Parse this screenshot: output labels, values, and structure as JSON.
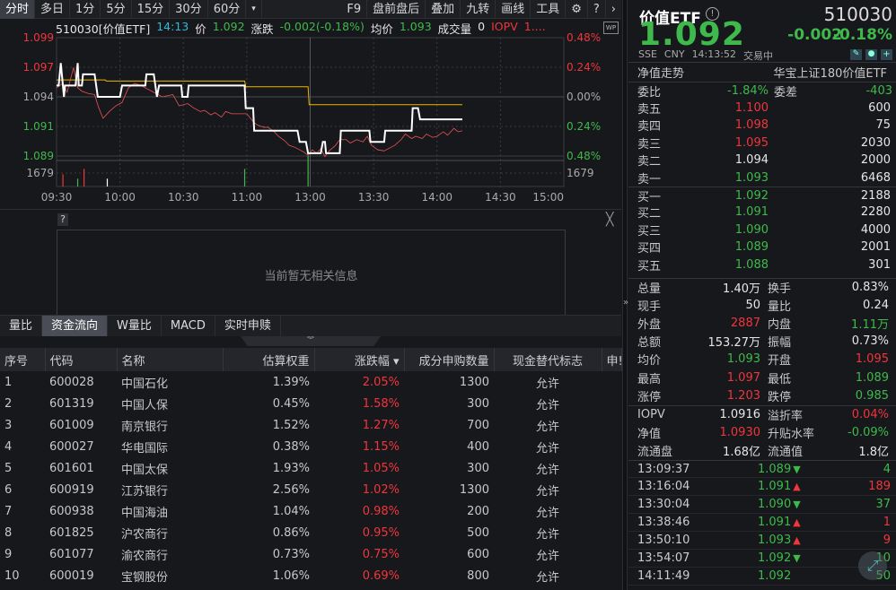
{
  "toolbar": {
    "periods": [
      "分时",
      "多日",
      "1分",
      "5分",
      "15分",
      "30分",
      "60分"
    ],
    "more": "▾",
    "tools": [
      "F9",
      "盘前盘后",
      "叠加",
      "九转",
      "画线",
      "工具"
    ],
    "settings_icon": "gear-icon",
    "help_icon": "question-icon",
    "next_icon": "chevron-right-icon"
  },
  "chart_header": {
    "code": "510030[价值ETF]",
    "time": "14:13",
    "price_label": "价",
    "price": "1.092",
    "change_label": "涨跌",
    "change": "-0.002(-0.18%)",
    "avg_label": "均价",
    "avg": "1.093",
    "vol_label": "成交量",
    "vol": "0",
    "iopv_label": "IOPV",
    "iopv": "1....",
    "wp": "WP"
  },
  "chart_data": {
    "type": "line",
    "prev_close": 1.094,
    "y_ticks_left": [
      "1.099",
      "1.097",
      "1.094",
      "1.091",
      "1.089"
    ],
    "y_ticks_right": [
      "0.48%",
      "0.24%",
      "0.00%",
      "0.24%",
      "0.48%"
    ],
    "volume_tick": "1679",
    "x_ticks": [
      "09:30",
      "10:00",
      "10:30",
      "11:00",
      "13:00",
      "13:30",
      "14:00",
      "14:30",
      "15:00"
    ],
    "grid": true,
    "colors": {
      "price": "#ffffff",
      "avg": "#f0b400",
      "iopv": "#e85454",
      "up": "#f0363c",
      "down": "#3fb94b"
    },
    "price_series": [
      [
        0,
        1.095
      ],
      [
        1,
        1.095
      ],
      [
        2,
        1.097
      ],
      [
        3.5,
        1.094
      ],
      [
        4,
        1.095
      ],
      [
        9,
        1.095
      ],
      [
        10,
        1.097
      ],
      [
        10.5,
        1.095
      ],
      [
        12,
        1.095
      ],
      [
        12.5,
        1.096
      ],
      [
        18,
        1.096
      ],
      [
        19.5,
        1.094
      ],
      [
        30,
        1.094
      ],
      [
        31,
        1.095
      ],
      [
        42,
        1.095
      ],
      [
        42.5,
        1.096
      ],
      [
        46,
        1.096
      ],
      [
        47.5,
        1.094
      ],
      [
        48.5,
        1.095
      ],
      [
        59,
        1.095
      ],
      [
        59.5,
        1.094
      ],
      [
        62,
        1.094
      ],
      [
        62.5,
        1.095
      ],
      [
        89,
        1.095
      ],
      [
        89.5,
        1.093
      ],
      [
        93,
        1.093
      ],
      [
        93.5,
        1.091
      ],
      [
        114,
        1.091
      ],
      [
        115,
        1.09
      ],
      [
        118,
        1.09
      ],
      [
        119,
        1.089
      ],
      [
        125,
        1.089
      ],
      [
        126,
        1.09
      ],
      [
        127,
        1.09
      ],
      [
        127.5,
        1.089
      ],
      [
        134,
        1.089
      ],
      [
        134.5,
        1.091
      ],
      [
        148,
        1.091
      ],
      [
        148.5,
        1.09
      ],
      [
        155,
        1.09
      ],
      [
        155.5,
        1.091
      ],
      [
        168,
        1.091
      ],
      [
        168.5,
        1.093
      ],
      [
        171,
        1.093
      ],
      [
        172,
        1.092
      ],
      [
        192,
        1.092
      ]
    ],
    "avg_series": [
      [
        0,
        1.0955
      ],
      [
        23,
        1.0955
      ],
      [
        23.5,
        1.0954
      ],
      [
        89,
        1.0954
      ],
      [
        89.5,
        1.0949
      ],
      [
        119,
        1.0949
      ],
      [
        119.5,
        1.0933
      ],
      [
        192,
        1.0933
      ]
    ],
    "iopv_series": [
      [
        0,
        1.0948
      ],
      [
        3,
        1.0952
      ],
      [
        5,
        1.0944
      ],
      [
        8,
        1.0966
      ],
      [
        10,
        1.0948
      ],
      [
        12,
        1.0945
      ],
      [
        15,
        1.0943
      ],
      [
        18,
        1.0942
      ],
      [
        20,
        1.093
      ],
      [
        22,
        1.0921
      ],
      [
        25,
        1.0927
      ],
      [
        28,
        1.0932
      ],
      [
        31,
        1.0935
      ],
      [
        34,
        1.0948
      ],
      [
        37,
        1.0952
      ],
      [
        40,
        1.095
      ],
      [
        43,
        1.0947
      ],
      [
        46,
        1.0944
      ],
      [
        50,
        1.094
      ],
      [
        55,
        1.0942
      ],
      [
        58,
        1.0932
      ],
      [
        62,
        1.0934
      ],
      [
        65,
        1.093
      ],
      [
        68,
        1.0927
      ],
      [
        70,
        1.0928
      ],
      [
        73,
        1.0924
      ],
      [
        75,
        1.0926
      ],
      [
        78,
        1.0922
      ],
      [
        80,
        1.0927
      ],
      [
        83,
        1.0925
      ],
      [
        86,
        1.0925
      ],
      [
        90,
        1.0925
      ],
      [
        93,
        1.0918
      ],
      [
        95,
        1.0915
      ],
      [
        98,
        1.0913
      ],
      [
        100,
        1.0913
      ],
      [
        103,
        1.0909
      ],
      [
        105,
        1.0905
      ],
      [
        108,
        1.0901
      ],
      [
        110,
        1.0897
      ],
      [
        113,
        1.0895
      ],
      [
        115,
        1.0893
      ],
      [
        117,
        1.0891
      ],
      [
        119,
        1.0888
      ],
      [
        121,
        1.0893
      ],
      [
        123,
        1.089
      ],
      [
        125,
        1.0894
      ],
      [
        127,
        1.0887
      ],
      [
        129,
        1.0892
      ],
      [
        132,
        1.0897
      ],
      [
        134,
        1.0902
      ],
      [
        137,
        1.0902
      ],
      [
        139,
        1.0899
      ],
      [
        142,
        1.0902
      ],
      [
        145,
        1.09
      ],
      [
        147,
        1.0905
      ],
      [
        149,
        1.0897
      ],
      [
        152,
        1.0893
      ],
      [
        155,
        1.0892
      ],
      [
        158,
        1.0895
      ],
      [
        160,
        1.0897
      ],
      [
        163,
        1.0902
      ],
      [
        165,
        1.0907
      ],
      [
        168,
        1.0903
      ],
      [
        170,
        1.0905
      ],
      [
        173,
        1.0903
      ],
      [
        175,
        1.0907
      ],
      [
        178,
        1.0904
      ],
      [
        180,
        1.0905
      ],
      [
        183,
        1.0909
      ],
      [
        185,
        1.0906
      ],
      [
        188,
        1.0912
      ],
      [
        190,
        1.0909
      ],
      [
        192,
        1.091
      ]
    ],
    "volume": [
      [
        3,
        1526,
        "up"
      ],
      [
        10,
        977,
        "down"
      ],
      [
        13,
        2198,
        "up"
      ],
      [
        24,
        977,
        "flat"
      ],
      [
        89,
        2198,
        "down"
      ],
      [
        119,
        3816,
        "down"
      ]
    ]
  },
  "info": {
    "text": "当前暂无相关信息",
    "help": "?",
    "close": "╳"
  },
  "tabs": [
    "量比",
    "资金流向",
    "W量比",
    "MACD",
    "实时申赎"
  ],
  "collapse": "︾",
  "table": {
    "headers": [
      "序号",
      "代码",
      "名称",
      "估算权重",
      "涨跌幅 ▾",
      "成分申购数量",
      "现金替代标志",
      "申!"
    ],
    "rows": [
      [
        "1",
        "600028",
        "中国石化",
        "1.39%",
        "2.05%",
        "1300",
        "允许"
      ],
      [
        "2",
        "601319",
        "中国人保",
        "0.45%",
        "1.58%",
        "300",
        "允许"
      ],
      [
        "3",
        "601009",
        "南京银行",
        "1.52%",
        "1.27%",
        "700",
        "允许"
      ],
      [
        "4",
        "600027",
        "华电国际",
        "0.38%",
        "1.15%",
        "400",
        "允许"
      ],
      [
        "5",
        "601601",
        "中国太保",
        "1.93%",
        "1.05%",
        "300",
        "允许"
      ],
      [
        "6",
        "600919",
        "江苏银行",
        "2.56%",
        "1.02%",
        "1300",
        "允许"
      ],
      [
        "7",
        "600938",
        "中国海油",
        "1.04%",
        "0.98%",
        "200",
        "允许"
      ],
      [
        "8",
        "601825",
        "沪农商行",
        "0.86%",
        "0.95%",
        "500",
        "允许"
      ],
      [
        "9",
        "601077",
        "渝农商行",
        "0.73%",
        "0.75%",
        "600",
        "允许"
      ],
      [
        "10",
        "600019",
        "宝钢股份",
        "1.06%",
        "0.69%",
        "800",
        "允许"
      ]
    ]
  },
  "right": {
    "name": "价值ETF",
    "info_icon": "!",
    "code": "510030",
    "price": "1.092",
    "change": "-0.002",
    "change_pct": "-0.18%",
    "meta": [
      "SSE",
      "CNY",
      "14:13:52",
      "交易中"
    ],
    "nav_trend": "净值走势",
    "fund_name": "华宝上证180价值ETF",
    "weibi_label": "委比",
    "weibi": "-1.84%",
    "weicha_label": "委差",
    "weicha": "-403",
    "asks": [
      {
        "label": "卖五",
        "price": "1.100",
        "vol": "600",
        "c": "red"
      },
      {
        "label": "卖四",
        "price": "1.098",
        "vol": "75",
        "c": "red"
      },
      {
        "label": "卖三",
        "price": "1.095",
        "vol": "2030",
        "c": "red"
      },
      {
        "label": "卖二",
        "price": "1.094",
        "vol": "2000",
        "c": "white"
      },
      {
        "label": "卖一",
        "price": "1.093",
        "vol": "6468",
        "c": "green"
      }
    ],
    "bids": [
      {
        "label": "买一",
        "price": "1.092",
        "vol": "2188",
        "c": "green"
      },
      {
        "label": "买二",
        "price": "1.091",
        "vol": "2280",
        "c": "green"
      },
      {
        "label": "买三",
        "price": "1.090",
        "vol": "4000",
        "c": "green"
      },
      {
        "label": "买四",
        "price": "1.089",
        "vol": "2001",
        "c": "green"
      },
      {
        "label": "买五",
        "price": "1.088",
        "vol": "301",
        "c": "green"
      }
    ],
    "stats": [
      [
        {
          "l": "总量",
          "v": "1.40万",
          "c": "white"
        },
        {
          "l": "换手",
          "v": "0.83%",
          "c": "white"
        }
      ],
      [
        {
          "l": "现手",
          "v": "50",
          "c": "white"
        },
        {
          "l": "量比",
          "v": "0.24",
          "c": "white"
        }
      ],
      [
        {
          "l": "外盘",
          "v": "2887",
          "c": "red"
        },
        {
          "l": "内盘",
          "v": "1.11万",
          "c": "green"
        }
      ],
      [
        {
          "l": "总额",
          "v": "153.27万",
          "c": "white"
        },
        {
          "l": "振幅",
          "v": "0.73%",
          "c": "white"
        }
      ],
      [
        {
          "l": "均价",
          "v": "1.093",
          "c": "green"
        },
        {
          "l": "开盘",
          "v": "1.095",
          "c": "red"
        }
      ],
      [
        {
          "l": "最高",
          "v": "1.097",
          "c": "red"
        },
        {
          "l": "最低",
          "v": "1.089",
          "c": "green"
        }
      ],
      [
        {
          "l": "涨停",
          "v": "1.203",
          "c": "red"
        },
        {
          "l": "跌停",
          "v": "0.985",
          "c": "green"
        }
      ]
    ],
    "etf": [
      [
        {
          "l": "IOPV",
          "v": "1.0916",
          "c": "white"
        },
        {
          "l": "溢折率",
          "v": "0.04%",
          "c": "red"
        }
      ],
      [
        {
          "l": "净值",
          "v": "1.0930",
          "c": "red"
        },
        {
          "l": "升贴水率",
          "v": "-0.09%",
          "c": "green"
        }
      ],
      [
        {
          "l": "流通盘",
          "v": "1.68亿",
          "c": "white"
        },
        {
          "l": "流通值",
          "v": "1.8亿",
          "c": "white"
        }
      ]
    ],
    "ticks": [
      {
        "t": "13:09:37",
        "p": "1.089",
        "dir": "down",
        "v": "4",
        "vc": "green"
      },
      {
        "t": "13:16:04",
        "p": "1.091",
        "dir": "up",
        "v": "189",
        "vc": "red"
      },
      {
        "t": "13:30:04",
        "p": "1.090",
        "dir": "down",
        "v": "37",
        "vc": "green"
      },
      {
        "t": "13:38:46",
        "p": "1.091",
        "dir": "up",
        "v": "1",
        "vc": "red"
      },
      {
        "t": "13:50:10",
        "p": "1.093",
        "dir": "up",
        "v": "9",
        "vc": "red"
      },
      {
        "t": "13:54:07",
        "p": "1.092",
        "dir": "down",
        "v": "10",
        "vc": "green"
      },
      {
        "t": "14:11:49",
        "p": "1.092",
        "dir": "",
        "v": "50",
        "vc": "green"
      }
    ]
  }
}
